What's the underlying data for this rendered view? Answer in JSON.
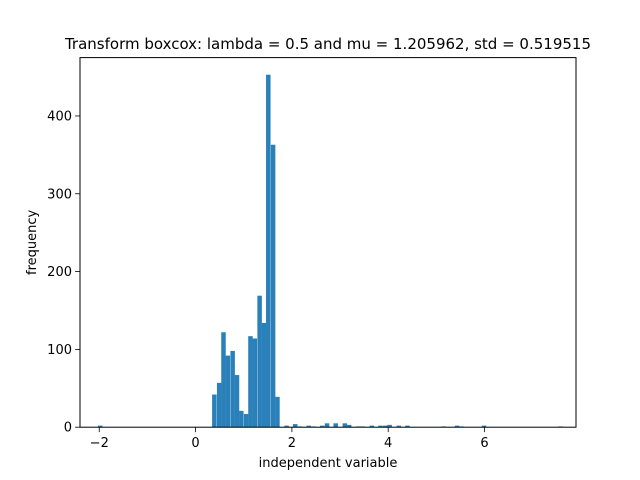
{
  "chart_data": {
    "type": "bar",
    "title": "Transform boxcox: lambda = 0.5 and mu = 1.205962,  std = 0.519515",
    "xlabel": "independent variable",
    "ylabel": "frequency",
    "xlim": [
      -2.4,
      7.9
    ],
    "ylim": [
      0,
      475
    ],
    "xticks": [
      -2,
      0,
      2,
      4,
      6
    ],
    "xtick_labels": [
      "−2",
      "0",
      "2",
      "4",
      "6"
    ],
    "yticks": [
      0,
      100,
      200,
      300,
      400
    ],
    "ytick_labels": [
      "0",
      "100",
      "200",
      "300",
      "400"
    ],
    "grid": false,
    "legend": "none",
    "bar_color": "#2a80b9",
    "bin_width": 0.0935,
    "bins": [
      {
        "x": -1.98,
        "count": 2
      },
      {
        "x": 0.39,
        "count": 42
      },
      {
        "x": 0.49,
        "count": 57
      },
      {
        "x": 0.58,
        "count": 122
      },
      {
        "x": 0.67,
        "count": 92
      },
      {
        "x": 0.77,
        "count": 98
      },
      {
        "x": 0.86,
        "count": 67
      },
      {
        "x": 0.95,
        "count": 21
      },
      {
        "x": 1.05,
        "count": 17
      },
      {
        "x": 1.14,
        "count": 117
      },
      {
        "x": 1.23,
        "count": 114
      },
      {
        "x": 1.33,
        "count": 169
      },
      {
        "x": 1.42,
        "count": 134
      },
      {
        "x": 1.51,
        "count": 453
      },
      {
        "x": 1.61,
        "count": 363
      },
      {
        "x": 1.7,
        "count": 39
      },
      {
        "x": 1.89,
        "count": 2
      },
      {
        "x": 2.07,
        "count": 4
      },
      {
        "x": 2.17,
        "count": 1
      },
      {
        "x": 2.35,
        "count": 2
      },
      {
        "x": 2.45,
        "count": 1
      },
      {
        "x": 2.63,
        "count": 2
      },
      {
        "x": 2.73,
        "count": 5
      },
      {
        "x": 2.91,
        "count": 5
      },
      {
        "x": 3.1,
        "count": 5
      },
      {
        "x": 3.19,
        "count": 3
      },
      {
        "x": 3.38,
        "count": 1
      },
      {
        "x": 3.47,
        "count": 1
      },
      {
        "x": 3.66,
        "count": 2
      },
      {
        "x": 3.84,
        "count": 2
      },
      {
        "x": 3.94,
        "count": 2
      },
      {
        "x": 4.03,
        "count": 3
      },
      {
        "x": 4.22,
        "count": 2
      },
      {
        "x": 4.4,
        "count": 2
      },
      {
        "x": 5.15,
        "count": 1
      },
      {
        "x": 5.43,
        "count": 2
      },
      {
        "x": 5.52,
        "count": 1
      },
      {
        "x": 5.99,
        "count": 2
      },
      {
        "x": 7.58,
        "count": 1
      }
    ]
  }
}
